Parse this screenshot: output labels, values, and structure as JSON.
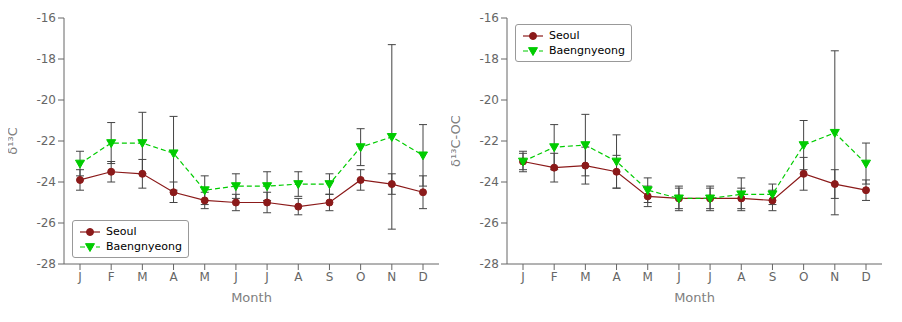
{
  "chart_data": [
    {
      "type": "line",
      "xlabel": "Month",
      "ylabel": "δ¹³C",
      "categories": [
        "J",
        "F",
        "M",
        "A",
        "M",
        "J",
        "J",
        "A",
        "S",
        "O",
        "N",
        "D"
      ],
      "series": [
        {
          "name": "Seoul",
          "color": "#8B1A1A",
          "marker": "circle",
          "line_style": "solid",
          "values": [
            -23.9,
            -23.5,
            -23.6,
            -24.5,
            -24.9,
            -25.0,
            -25.0,
            -25.2,
            -25.0,
            -23.9,
            -24.1,
            -24.5
          ],
          "errors": [
            0.5,
            0.5,
            0.7,
            0.5,
            0.4,
            0.4,
            0.5,
            0.4,
            0.4,
            0.5,
            0.5,
            0.8
          ]
        },
        {
          "name": "Baengnyeong",
          "color": "#00CC00",
          "marker": "triangle_down",
          "line_style": "dashed",
          "values": [
            -23.1,
            -22.1,
            -22.1,
            -22.6,
            -24.4,
            -24.2,
            -24.2,
            -24.1,
            -24.1,
            -22.3,
            -21.8,
            -22.7
          ],
          "errors": [
            0.6,
            1.0,
            1.5,
            1.8,
            0.7,
            0.6,
            0.7,
            0.6,
            0.5,
            0.9,
            4.5,
            1.5
          ]
        }
      ],
      "ylim": [
        -28,
        -16
      ],
      "yticks": [
        -28,
        -26,
        -24,
        -22,
        -20,
        -18,
        -16
      ],
      "legend": "lower left",
      "grid": false
    },
    {
      "type": "line",
      "xlabel": "Month",
      "ylabel": "δ¹³C-OC",
      "categories": [
        "J",
        "F",
        "M",
        "A",
        "M",
        "J",
        "J",
        "A",
        "S",
        "O",
        "N",
        "D"
      ],
      "series": [
        {
          "name": "Seoul",
          "color": "#8B1A1A",
          "marker": "circle",
          "line_style": "solid",
          "values": [
            -23.0,
            -23.3,
            -23.2,
            -23.5,
            -24.7,
            -24.8,
            -24.8,
            -24.8,
            -24.9,
            -23.6,
            -24.1,
            -24.4
          ],
          "errors": [
            0.5,
            0.7,
            0.9,
            0.8,
            0.5,
            0.5,
            0.5,
            0.5,
            0.5,
            0.8,
            0.7,
            0.5
          ]
        },
        {
          "name": "Baengnyeong",
          "color": "#00CC00",
          "marker": "triangle_down",
          "line_style": "dashed",
          "values": [
            -23.0,
            -22.3,
            -22.2,
            -23.0,
            -24.4,
            -24.8,
            -24.8,
            -24.6,
            -24.6,
            -22.2,
            -21.6,
            -23.1
          ],
          "errors": [
            0.4,
            1.1,
            1.5,
            1.3,
            0.6,
            0.6,
            0.6,
            0.8,
            0.5,
            1.2,
            4.0,
            1.0
          ]
        }
      ],
      "ylim": [
        -28,
        -16
      ],
      "yticks": [
        -28,
        -26,
        -24,
        -22,
        -20,
        -18,
        -16
      ],
      "legend": "upper left",
      "grid": false
    }
  ]
}
